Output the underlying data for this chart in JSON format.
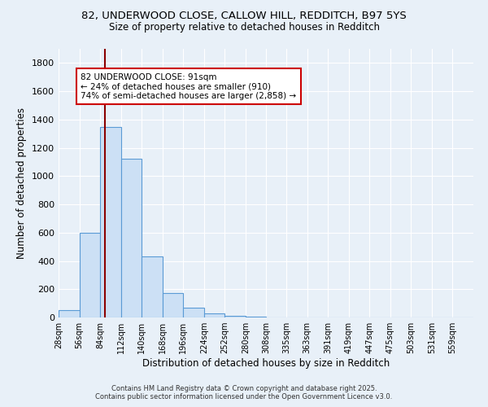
{
  "title_line1": "82, UNDERWOOD CLOSE, CALLOW HILL, REDDITCH, B97 5YS",
  "title_line2": "Size of property relative to detached houses in Redditch",
  "xlabel": "Distribution of detached houses by size in Redditch",
  "ylabel": "Number of detached properties",
  "bin_edges": [
    28,
    56,
    84,
    112,
    140,
    168,
    196,
    224,
    252,
    280,
    308,
    335,
    363,
    391,
    419,
    447,
    475,
    503,
    531,
    559,
    587
  ],
  "bar_heights": [
    50,
    600,
    1350,
    1120,
    430,
    170,
    70,
    30,
    10,
    3,
    2,
    1,
    1,
    0,
    0,
    0,
    0,
    0,
    0,
    0
  ],
  "bar_color": "#cce0f5",
  "bar_edge_color": "#5b9bd5",
  "property_size": 91,
  "vline_color": "#8b0000",
  "annotation_text": "82 UNDERWOOD CLOSE: 91sqm\n← 24% of detached houses are smaller (910)\n74% of semi-detached houses are larger (2,858) →",
  "annotation_box_color": "#ffffff",
  "annotation_box_edge": "#cc0000",
  "ylim": [
    0,
    1900
  ],
  "yticks": [
    0,
    200,
    400,
    600,
    800,
    1000,
    1200,
    1400,
    1600,
    1800
  ],
  "background_color": "#e8f0f8",
  "grid_color": "#ffffff",
  "footer_line1": "Contains HM Land Registry data © Crown copyright and database right 2025.",
  "footer_line2": "Contains public sector information licensed under the Open Government Licence v3.0."
}
